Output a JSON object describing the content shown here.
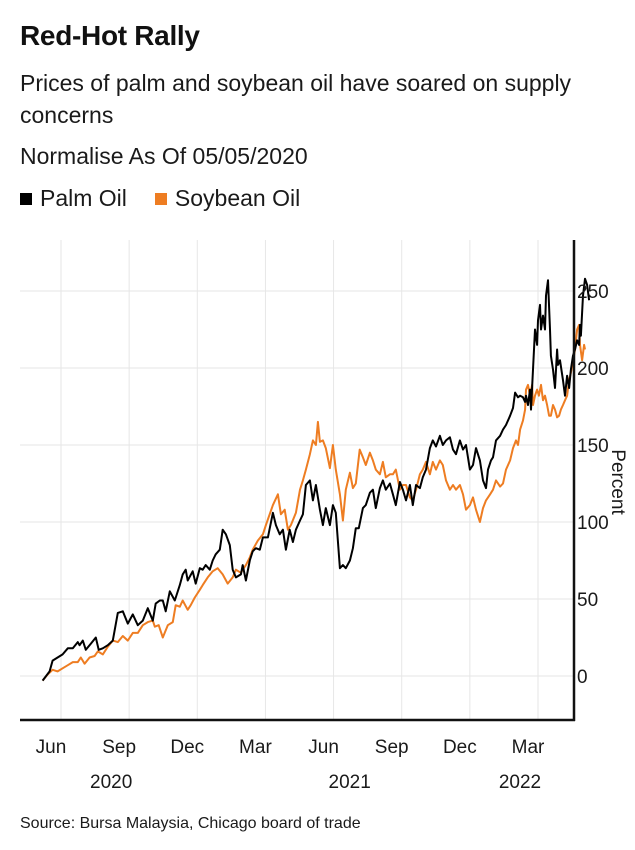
{
  "chart_data": {
    "type": "line",
    "title": "Red-Hot Rally",
    "subtitle": "Prices of palm and soybean oil have soared on supply concerns",
    "note": "Normalise As Of 05/05/2020",
    "xlabel": "",
    "ylabel": "Percent",
    "source": "Source: Bursa Malaysia, Chicago board of trade",
    "x_unit": "months after 2020-05-01 (Jun 2020 = 1)",
    "xlim": [
      0.19,
      24.6
    ],
    "ylim": [
      -28,
      310
    ],
    "yticks": [
      0,
      50,
      100,
      150,
      200,
      250
    ],
    "xticks": [
      {
        "x": 1,
        "label": "Jun"
      },
      {
        "x": 4,
        "label": "Sep"
      },
      {
        "x": 7,
        "label": "Dec"
      },
      {
        "x": 10,
        "label": "Mar"
      },
      {
        "x": 13,
        "label": "Jun"
      },
      {
        "x": 16,
        "label": "Sep"
      },
      {
        "x": 19,
        "label": "Dec"
      },
      {
        "x": 22,
        "label": "Mar"
      }
    ],
    "year_labels": [
      {
        "x": 4,
        "label": "2020"
      },
      {
        "x": 14.5,
        "label": "2021"
      },
      {
        "x": 22,
        "label": "2022"
      }
    ],
    "grid": true,
    "legend_position": "top-left",
    "series": [
      {
        "name": "Palm Oil",
        "color": "#000000",
        "x": [
          0.19,
          0.5,
          0.63,
          0.85,
          1.07,
          1.3,
          1.52,
          1.74,
          1.82,
          1.96,
          2.09,
          2.31,
          2.53,
          2.66,
          2.84,
          3.06,
          3.28,
          3.5,
          3.72,
          3.94,
          4.16,
          4.38,
          4.6,
          4.82,
          5.04,
          5.17,
          5.35,
          5.48,
          5.61,
          5.79,
          6.01,
          6.23,
          6.36,
          6.49,
          6.58,
          6.8,
          6.93,
          7.11,
          7.24,
          7.37,
          7.55,
          7.68,
          7.81,
          7.99,
          8.12,
          8.26,
          8.43,
          8.56,
          8.7,
          8.92,
          9.0,
          9.14,
          9.31,
          9.44,
          9.58,
          9.75,
          9.89,
          10.11,
          10.33,
          10.46,
          10.63,
          10.77,
          10.9,
          11.07,
          11.21,
          11.34,
          11.52,
          11.65,
          11.78,
          11.96,
          12.09,
          12.22,
          12.4,
          12.53,
          12.66,
          12.84,
          12.97,
          13.1,
          13.28,
          13.41,
          13.54,
          13.72,
          13.85,
          13.98,
          14.11,
          14.29,
          14.42,
          14.6,
          14.73,
          14.86,
          15.04,
          15.17,
          15.3,
          15.48,
          15.61,
          15.74,
          15.92,
          16.05,
          16.19,
          16.36,
          16.49,
          16.63,
          16.8,
          16.93,
          17.07,
          17.24,
          17.37,
          17.51,
          17.68,
          17.81,
          17.95,
          18.12,
          18.26,
          18.39,
          18.56,
          18.7,
          18.83,
          19.0,
          19.14,
          19.27,
          19.44,
          19.58,
          19.71,
          19.8,
          19.93,
          20.02,
          20.15,
          20.33,
          20.46,
          20.59,
          20.77,
          20.9,
          20.99,
          21.12,
          21.21,
          21.34,
          21.43,
          21.47,
          21.56,
          21.65,
          21.69,
          21.78,
          21.87,
          21.96,
          22.0,
          22.09,
          22.13,
          22.22,
          22.31,
          22.35,
          22.44,
          22.53,
          22.57,
          22.66,
          22.75,
          22.84,
          22.88,
          22.97,
          23.1,
          23.19,
          23.28,
          23.37,
          23.45,
          23.54,
          23.63,
          23.72,
          23.81,
          23.85,
          23.89,
          23.98,
          24.07,
          24.16,
          24.25
        ],
        "values": [
          -3,
          3,
          10,
          12,
          14,
          18,
          18,
          22,
          20,
          23,
          17,
          21,
          25,
          17,
          18,
          20,
          23,
          41,
          42,
          34,
          40,
          33,
          36,
          44,
          36,
          47,
          49,
          49,
          42,
          55,
          49,
          59,
          66,
          69,
          62,
          68,
          60,
          70,
          69,
          72,
          69,
          75,
          79,
          82,
          95,
          92,
          85,
          69,
          64,
          66,
          72,
          62,
          75,
          81,
          83,
          82,
          90,
          90,
          106,
          98,
          92,
          95,
          82,
          95,
          87,
          95,
          101,
          105,
          124,
          127,
          114,
          124,
          108,
          98,
          109,
          98,
          111,
          106,
          70,
          72,
          70,
          75,
          83,
          96,
          96,
          109,
          111,
          119,
          121,
          109,
          122,
          127,
          121,
          125,
          118,
          111,
          126,
          121,
          114,
          124,
          111,
          124,
          122,
          129,
          134,
          148,
          153,
          149,
          156,
          150,
          153,
          155,
          147,
          144,
          153,
          147,
          150,
          134,
          137,
          148,
          140,
          127,
          122,
          134,
          140,
          142,
          153,
          156,
          160,
          163,
          169,
          174,
          184,
          181,
          182,
          181,
          178,
          182,
          176,
          186,
          173,
          199,
          225,
          215,
          231,
          241,
          225,
          234,
          225,
          247,
          257,
          225,
          208,
          199,
          187,
          212,
          202,
          205,
          192,
          182,
          195,
          187,
          199,
          208,
          212,
          218,
          215,
          228,
          221,
          247,
          258,
          254,
          244
        ]
      },
      {
        "name": "Soybean Oil",
        "color": "#EE7D22",
        "x": [
          0.19,
          0.41,
          0.63,
          0.85,
          1.07,
          1.3,
          1.52,
          1.74,
          1.87,
          2.04,
          2.26,
          2.48,
          2.62,
          2.84,
          3.06,
          3.28,
          3.5,
          3.72,
          3.94,
          4.16,
          4.38,
          4.6,
          4.82,
          5.04,
          5.13,
          5.3,
          5.48,
          5.7,
          5.92,
          6.05,
          6.23,
          6.36,
          6.58,
          6.71,
          6.89,
          7.11,
          7.24,
          7.46,
          7.68,
          7.9,
          8.12,
          8.34,
          8.56,
          8.7,
          8.92,
          9.0,
          9.14,
          9.31,
          9.44,
          9.67,
          9.89,
          10.02,
          10.33,
          10.55,
          10.68,
          10.85,
          10.99,
          11.12,
          11.34,
          11.52,
          11.65,
          11.78,
          11.96,
          12.09,
          12.22,
          12.31,
          12.4,
          12.53,
          12.66,
          12.84,
          12.97,
          13.1,
          13.28,
          13.41,
          13.54,
          13.72,
          13.85,
          13.98,
          14.15,
          14.29,
          14.42,
          14.6,
          14.73,
          14.86,
          15.04,
          15.17,
          15.3,
          15.48,
          15.61,
          15.74,
          15.92,
          16.05,
          16.19,
          16.36,
          16.49,
          16.63,
          16.8,
          16.93,
          17.07,
          17.24,
          17.37,
          17.51,
          17.68,
          17.81,
          17.95,
          18.12,
          18.26,
          18.39,
          18.56,
          18.7,
          18.83,
          19.0,
          19.14,
          19.27,
          19.44,
          19.58,
          19.71,
          19.89,
          20.02,
          20.15,
          20.33,
          20.46,
          20.59,
          20.77,
          20.9,
          21.03,
          21.12,
          21.21,
          21.34,
          21.43,
          21.47,
          21.56,
          21.65,
          21.74,
          21.78,
          21.87,
          21.96,
          22.04,
          22.13,
          22.22,
          22.31,
          22.4,
          22.49,
          22.57,
          22.66,
          22.75,
          22.84,
          22.93,
          23.01,
          23.1,
          23.19,
          23.28,
          23.37,
          23.45,
          23.54,
          23.63,
          23.72,
          23.81,
          23.85,
          23.94,
          24.03,
          24.07
        ],
        "values": [
          -3,
          1,
          4,
          3,
          5,
          7,
          9,
          9,
          12,
          8,
          12,
          13,
          16,
          14,
          19,
          23,
          22,
          26,
          23,
          28,
          28,
          33,
          35,
          36,
          32,
          33,
          25,
          33,
          35,
          46,
          45,
          49,
          43,
          46,
          51,
          56,
          59,
          64,
          68,
          70,
          66,
          60,
          64,
          69,
          67,
          69,
          72,
          77,
          82,
          88,
          92,
          98,
          111,
          118,
          105,
          108,
          95,
          98,
          106,
          121,
          127,
          134,
          144,
          153,
          150,
          165,
          152,
          153,
          148,
          135,
          150,
          134,
          118,
          101,
          121,
          132,
          122,
          125,
          147,
          142,
          137,
          145,
          140,
          134,
          131,
          139,
          129,
          131,
          131,
          134,
          121,
          124,
          124,
          116,
          114,
          121,
          131,
          134,
          139,
          131,
          139,
          134,
          140,
          137,
          127,
          121,
          124,
          121,
          124,
          118,
          108,
          111,
          116,
          108,
          100,
          109,
          114,
          118,
          121,
          127,
          123,
          125,
          134,
          140,
          148,
          153,
          150,
          160,
          166,
          173,
          186,
          189,
          182,
          189,
          176,
          182,
          186,
          182,
          189,
          179,
          182,
          176,
          169,
          169,
          176,
          173,
          168,
          169,
          173,
          176,
          179,
          182,
          192,
          197,
          204,
          212,
          225,
          228,
          215,
          205,
          215,
          212
        ]
      }
    ]
  }
}
